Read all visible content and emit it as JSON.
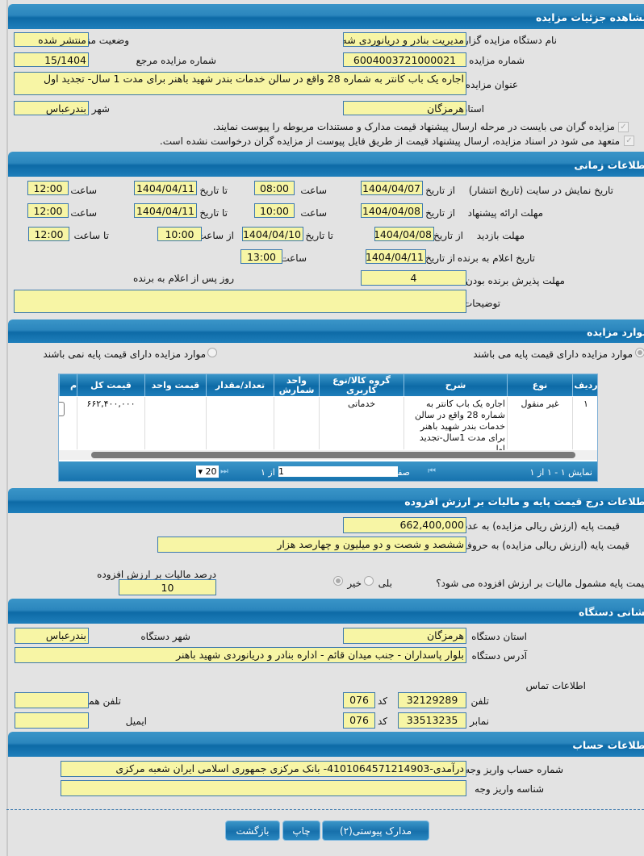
{
  "sections": {
    "details": "مشاهده جزئیات مزایده",
    "time": "اطلاعات زمانی",
    "items": "موارد مزایده",
    "price": "اطلاعات درج قیمت پایه و مالیات بر ارزش افزوده",
    "address": "نشانی دستگاه",
    "account": "اطلاعات حساب"
  },
  "details": {
    "agency_label": "نام دستگاه مزایده گزار",
    "agency": "مدیریت بنادر و دریانوردی شه",
    "status_label": "وضعیت مزایده",
    "status": "منتشر شده",
    "number_label": "شماره مزایده",
    "number": "6004003721000021",
    "ref_label": "شماره مزایده مرجع",
    "ref": "15/1404",
    "title_label": "عنوان مزایده",
    "title": "اجاره یک باب کانتر به شماره 28 واقع در سالن خدمات بندر شهید باهنر برای مدت 1 سال- تجدید اول",
    "province_label": "استان",
    "province": "هرمزگان",
    "city_label": "شهر",
    "city": "بندرعباس",
    "check1": "مزایده گران می بایست در مرحله ارسال پیشنهاد قیمت مدارک و مستندات مربوطه را پیوست نمایند.",
    "check2": "متعهد می شود در اسناد مزایده، ارسال پیشنهاد قیمت از طریق فایل پیوست از مزایده گران درخواست نشده است."
  },
  "time": {
    "from_date": "از تاریخ",
    "to_date": "تا تاریخ",
    "hour": "ساعت",
    "from_hour": "از ساعت",
    "to_hour": "تا ساعت",
    "display_label": "تاریخ نمایش در سایت (تاریخ انتشار)",
    "display": [
      "1404/04/07",
      "08:00",
      "1404/04/11",
      "12:00"
    ],
    "offer_label": "مهلت ارائه پیشنهاد",
    "offer": [
      "1404/04/08",
      "10:00",
      "1404/04/11",
      "12:00"
    ],
    "visit_label": "مهلت بازدید",
    "visit": [
      "1404/04/08",
      "1404/04/10",
      "10:00",
      "12:00"
    ],
    "announce_label": "تاریخ اعلام به برنده",
    "announce": [
      "1404/04/11",
      "13:00"
    ],
    "accept_label": "مهلت پذیرش برنده بودن",
    "accept": "4",
    "accept_suffix": "روز پس از اعلام به برنده",
    "notes_label": "توضیحات",
    "notes": ""
  },
  "items": {
    "radio_yes": "موارد مزایده دارای قیمت پایه می باشند",
    "radio_no": "موارد مزایده دارای قیمت پایه نمی باشند",
    "columns": [
      "ردیف",
      "نوع",
      "شرح",
      "گروه کالا/نوع کاربری",
      "واحد شمارش",
      "تعداد/مقدار",
      "قیمت واحد",
      "قیمت کل",
      "م"
    ],
    "rows": [
      [
        "۱",
        "غیر منقول",
        "اجاره یک باب کانتر به شماره 28 واقع در سالن خدمات بندر شهید باهنر برای مدت 1سال-تجدید اول",
        "خدماتی",
        "",
        "",
        "",
        "۶۶۲,۴۰۰,۰۰۰"
      ]
    ],
    "pager": {
      "showing": "نمایش ۱ - ۱ از ۱",
      "page_label": "صفحه",
      "page": "1",
      "of": "از ۱",
      "page_size": "20"
    }
  },
  "price": {
    "num_label": "قیمت پایه (ارزش ریالی مزایده) به عدد",
    "num": "662,400,000",
    "words_label": "قیمت پایه (ارزش ریالی مزایده) به حروف",
    "words": "ششصد و شصت و دو میلیون و چهارصد هزار",
    "vat_q": "قیمت پایه مشمول مالیات بر ارزش افزوده می شود؟",
    "yes": "بلی",
    "no": "خیر",
    "vat_pct_label": "درصد مالیات بر ارزش افزوده",
    "vat_pct": "10"
  },
  "address": {
    "province_label": "استان دستگاه",
    "province": "هرمزگان",
    "city_label": "شهر دستگاه",
    "city": "بندرعباس",
    "addr_label": "آدرس دستگاه",
    "addr": "بلوار پاسداران - جنب میدان قائم - اداره بنادر و دریانوردی شهید باهنر",
    "contact": "اطلاعات تماس",
    "phone_label": "تلفن",
    "phone": "32129289",
    "code_label": "کد",
    "phone_code": "076",
    "mobile_label": "تلفن همراه",
    "mobile": "",
    "fax_label": "نمابر",
    "fax": "33513235",
    "fax_code": "076",
    "email_label": "ایمیل",
    "email": ""
  },
  "account": {
    "acc_label": "شماره حساب واریز وجه",
    "acc": "درآمدی-4101064571214903- بانک مرکزی جمهوری اسلامی ایران شعبه مرکزی",
    "id_label": "شناسه واریز وجه",
    "id": ""
  },
  "buttons": {
    "docs": "مدارک پیوستی(۲)",
    "print": "چاپ",
    "back": "بازگشت"
  }
}
